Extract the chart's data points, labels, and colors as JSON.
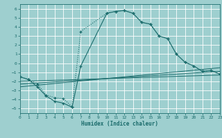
{
  "xlabel": "Humidex (Indice chaleur)",
  "background_color": "#9ecfcf",
  "grid_color": "#ffffff",
  "line_color": "#1a6b6b",
  "xlim": [
    0,
    23
  ],
  "ylim": [
    -5.5,
    6.5
  ],
  "xticks": [
    0,
    1,
    2,
    3,
    4,
    5,
    6,
    7,
    8,
    9,
    10,
    11,
    12,
    13,
    14,
    15,
    16,
    17,
    18,
    19,
    20,
    21,
    22,
    23
  ],
  "yticks": [
    -5,
    -4,
    -3,
    -2,
    -1,
    0,
    1,
    2,
    3,
    4,
    5,
    6
  ],
  "curve_dotted_x": [
    0,
    1,
    2,
    3,
    4,
    5,
    6,
    7,
    10,
    11,
    12,
    13,
    14,
    15,
    16,
    17,
    18,
    19,
    20,
    21,
    22,
    23
  ],
  "curve_dotted_y": [
    -1.5,
    -1.8,
    -2.3,
    -3.5,
    -3.8,
    -3.9,
    -4.8,
    3.5,
    5.5,
    5.7,
    5.8,
    5.5,
    4.5,
    4.3,
    3.0,
    2.7,
    1.0,
    0.1,
    -0.3,
    -0.9,
    -0.8,
    -1.2
  ],
  "curve_solid_x": [
    0,
    1,
    2,
    3,
    4,
    5,
    6,
    7,
    10,
    11,
    12,
    13,
    14,
    15,
    16,
    17,
    18,
    19,
    20,
    21,
    22,
    23
  ],
  "curve_solid_y": [
    -1.5,
    -1.8,
    -2.6,
    -3.6,
    -4.2,
    -4.4,
    -4.85,
    -0.3,
    5.5,
    5.7,
    5.8,
    5.5,
    4.5,
    4.3,
    3.0,
    2.7,
    1.0,
    0.1,
    -0.3,
    -0.9,
    -0.8,
    -1.2
  ],
  "hline1_x": [
    0,
    23
  ],
  "hline1_y": [
    -2.0,
    -1.3
  ],
  "hline2_x": [
    0,
    23
  ],
  "hline2_y": [
    -2.3,
    -0.9
  ],
  "hline3_x": [
    0,
    23
  ],
  "hline3_y": [
    -2.6,
    -0.5
  ]
}
